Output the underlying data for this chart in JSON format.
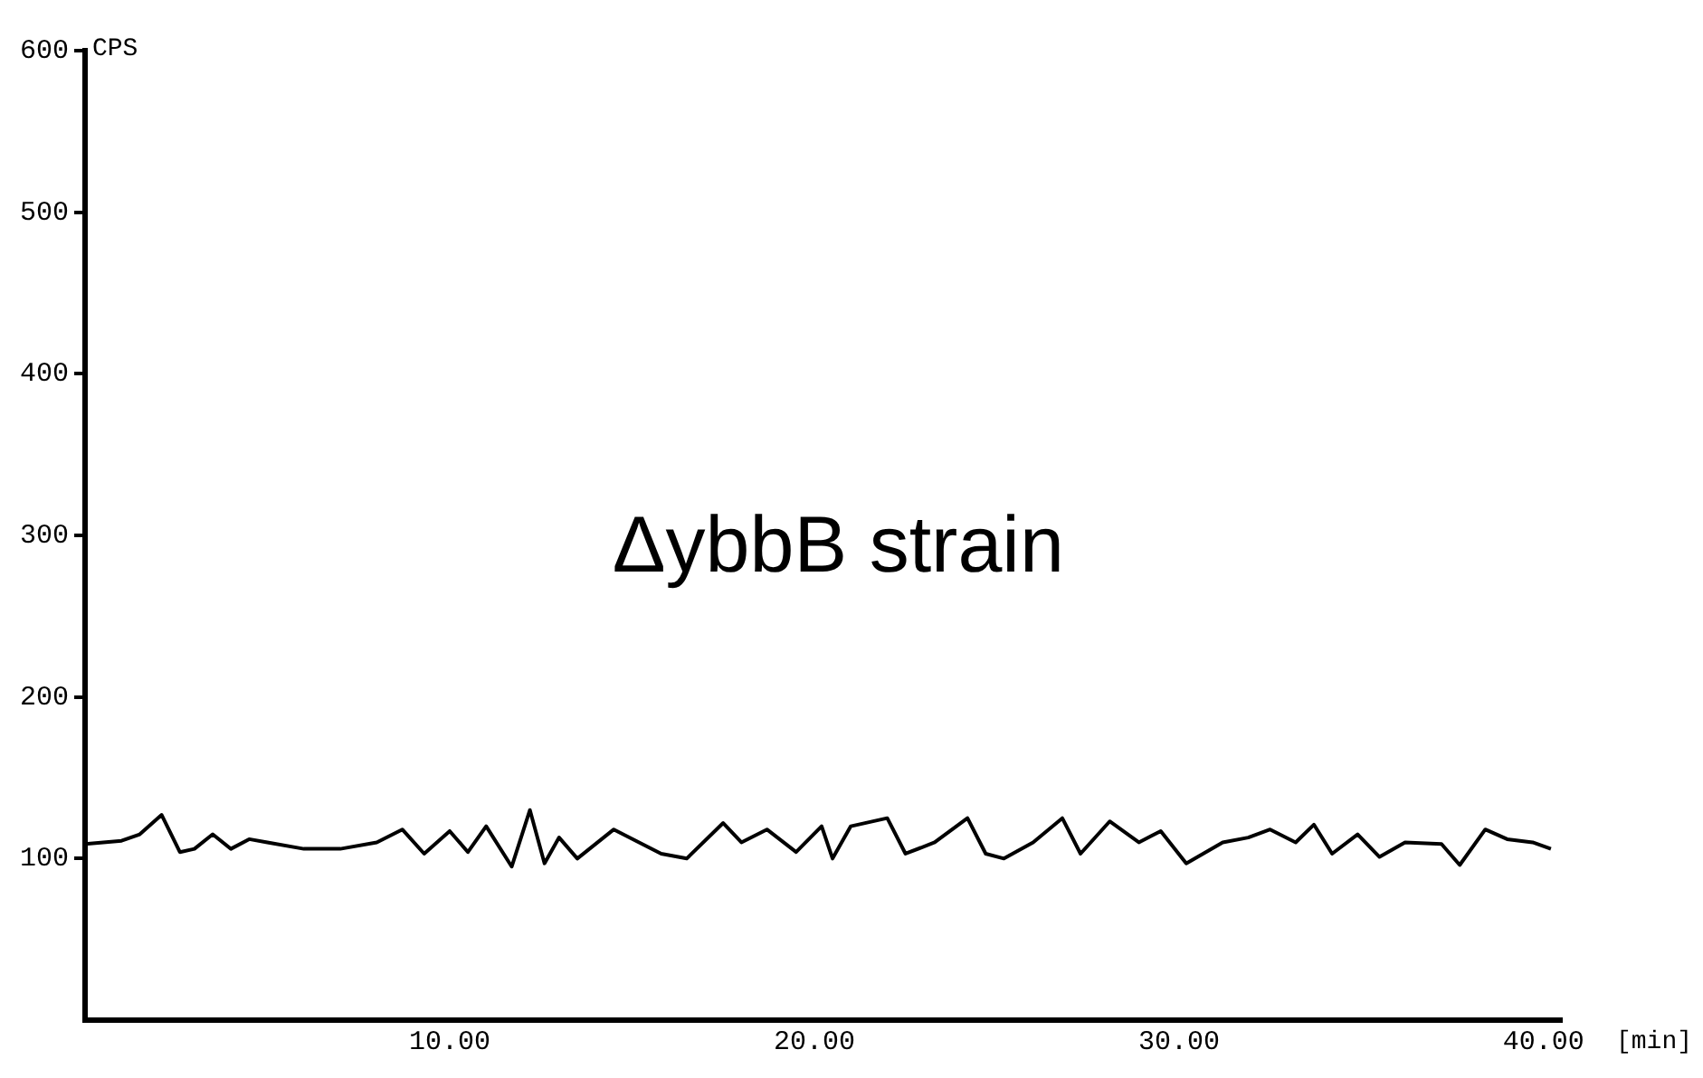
{
  "chart_data": {
    "type": "line",
    "xlabel": "[min]",
    "ylabel": "CPS",
    "annotations": [
      "ΔybbB strain"
    ],
    "x": [
      0,
      1,
      1.5,
      2.1,
      2.6,
      3,
      3.5,
      4,
      4.5,
      5,
      6,
      7,
      8,
      8.7,
      9.3,
      10,
      10.5,
      11,
      11.7,
      12.2,
      12.6,
      13,
      13.5,
      14.5,
      15.8,
      16.5,
      17.5,
      18,
      18.7,
      19.5,
      20.2,
      20.5,
      21,
      22,
      22.5,
      23.3,
      24.2,
      24.7,
      25.2,
      26,
      26.8,
      27.3,
      28.1,
      28.9,
      29.5,
      30.2,
      31.2,
      31.9,
      32.5,
      33.2,
      33.7,
      34.2,
      34.9,
      35.5,
      36.2,
      37.2,
      37.7,
      38.4,
      39,
      39.7,
      40.2
    ],
    "series": [
      {
        "color": "#000000",
        "values": [
          109,
          111,
          115,
          127,
          104,
          106,
          115,
          106,
          112,
          110,
          106,
          106,
          110,
          118,
          103,
          117,
          104,
          120,
          95,
          130,
          97,
          113,
          100,
          118,
          103,
          100,
          122,
          110,
          118,
          104,
          120,
          100,
          120,
          125,
          103,
          110,
          125,
          103,
          100,
          110,
          125,
          103,
          123,
          110,
          117,
          97,
          110,
          113,
          118,
          110,
          121,
          103,
          115,
          101,
          110,
          109,
          96,
          118,
          112,
          110,
          106
        ]
      }
    ],
    "xlim": [
      0,
      40.5
    ],
    "xticks": [
      {
        "value": 10,
        "label": "10.00"
      },
      {
        "value": 20,
        "label": "20.00"
      },
      {
        "value": 30,
        "label": "30.00"
      },
      {
        "value": 40,
        "label": "40.00"
      }
    ],
    "ylim": [
      0,
      600
    ],
    "yticks": [
      100,
      200,
      300,
      400,
      500,
      600
    ],
    "grid": false,
    "legend": false,
    "marker": "none",
    "line_style": "solid"
  }
}
